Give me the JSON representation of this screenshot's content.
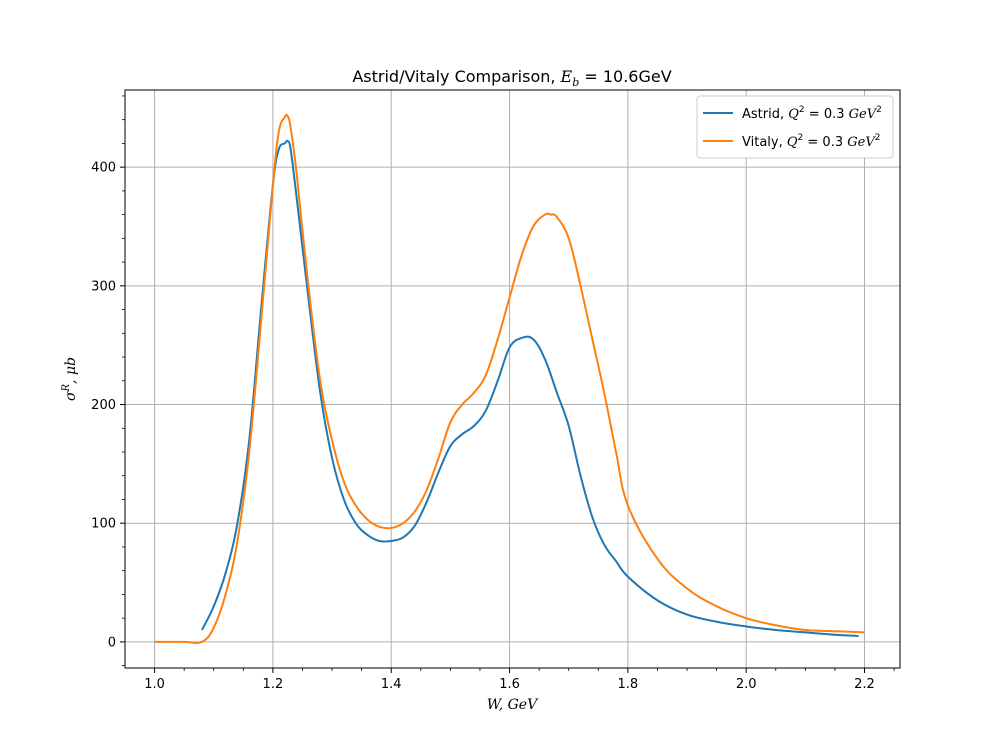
{
  "chart_data": {
    "type": "line",
    "title": "Astrid/Vitaly Comparison, E_b = 10.6 GeV",
    "title_parts": {
      "prefix": "Astrid/Vitaly Comparison, ",
      "math": "E",
      "math_sub": "b",
      "math_rest": " = 10.6GeV"
    },
    "xlabel": "W, GeV",
    "ylabel": "σ^R, μb",
    "ylabel_parts": {
      "base": "σ",
      "sup": "R",
      "rest": ", μb"
    },
    "xlim": [
      0.95,
      2.26
    ],
    "ylim": [
      -22,
      465
    ],
    "x_ticks": [
      1.0,
      1.2,
      1.4,
      1.6,
      1.8,
      2.0,
      2.2
    ],
    "x_tick_labels": [
      "1.0",
      "1.2",
      "1.4",
      "1.6",
      "1.8",
      "2.0",
      "2.2"
    ],
    "y_ticks": [
      0,
      100,
      200,
      300,
      400
    ],
    "y_tick_labels": [
      "0",
      "100",
      "200",
      "300",
      "400"
    ],
    "grid": true,
    "legend_position": "top-right",
    "series": [
      {
        "name": "Astrid, Q^2 = 0.3 GeV^2",
        "label_prefix": "Astrid, ",
        "color": "#1f77b4",
        "x": [
          1.08,
          1.1,
          1.12,
          1.14,
          1.16,
          1.18,
          1.2,
          1.21,
          1.22,
          1.225,
          1.23,
          1.24,
          1.26,
          1.28,
          1.3,
          1.32,
          1.34,
          1.36,
          1.38,
          1.4,
          1.42,
          1.44,
          1.46,
          1.48,
          1.5,
          1.52,
          1.54,
          1.56,
          1.58,
          1.6,
          1.62,
          1.64,
          1.66,
          1.68,
          1.7,
          1.72,
          1.74,
          1.76,
          1.78,
          1.8,
          1.85,
          1.9,
          1.95,
          2.0,
          2.05,
          2.1,
          2.15,
          2.19
        ],
        "y": [
          10,
          30,
          58,
          100,
          170,
          280,
          385,
          415,
          420,
          422,
          415,
          375,
          290,
          210,
          155,
          120,
          100,
          90,
          85,
          85,
          88,
          98,
          118,
          143,
          165,
          175,
          182,
          195,
          220,
          248,
          256,
          255,
          238,
          210,
          182,
          140,
          105,
          82,
          68,
          55,
          35,
          23,
          17,
          13,
          10,
          8,
          6,
          5
        ]
      },
      {
        "name": "Vitaly, Q^2 = 0.3 GeV^2",
        "label_prefix": "Vitaly, ",
        "color": "#ff7f0e",
        "x": [
          1.0,
          1.05,
          1.08,
          1.1,
          1.12,
          1.14,
          1.16,
          1.18,
          1.2,
          1.21,
          1.22,
          1.225,
          1.23,
          1.24,
          1.26,
          1.28,
          1.3,
          1.32,
          1.34,
          1.36,
          1.38,
          1.4,
          1.42,
          1.44,
          1.46,
          1.48,
          1.5,
          1.52,
          1.54,
          1.56,
          1.58,
          1.6,
          1.62,
          1.64,
          1.66,
          1.67,
          1.68,
          1.7,
          1.72,
          1.74,
          1.76,
          1.78,
          1.8,
          1.85,
          1.9,
          1.95,
          2.0,
          2.05,
          2.1,
          2.15,
          2.2
        ],
        "y": [
          0,
          0,
          0,
          12,
          40,
          85,
          160,
          270,
          385,
          430,
          442,
          443,
          433,
          395,
          300,
          220,
          170,
          135,
          115,
          103,
          97,
          96,
          100,
          110,
          128,
          155,
          185,
          200,
          210,
          225,
          255,
          290,
          325,
          350,
          360,
          360,
          358,
          340,
          300,
          255,
          210,
          160,
          115,
          70,
          45,
          30,
          20,
          14,
          10,
          9,
          8
        ]
      }
    ],
    "legend_math": {
      "var": "Q",
      "sup": "2",
      "eq": " = 0.3",
      "unit": "GeV",
      "unit_sup": "2"
    }
  }
}
